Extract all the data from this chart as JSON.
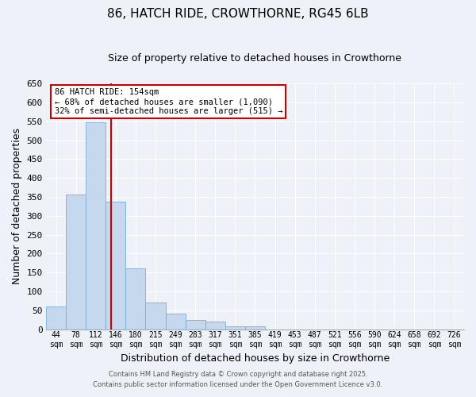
{
  "title": "86, HATCH RIDE, CROWTHORNE, RG45 6LB",
  "subtitle": "Size of property relative to detached houses in Crowthorne",
  "xlabel": "Distribution of detached houses by size in Crowthorne",
  "ylabel": "Number of detached properties",
  "bar_color": "#c5d8ee",
  "bar_edge_color": "#7aadd4",
  "background_color": "#eef2f8",
  "grid_color": "#ffffff",
  "bin_labels": [
    "44sqm",
    "78sqm",
    "112sqm",
    "146sqm",
    "180sqm",
    "215sqm",
    "249sqm",
    "283sqm",
    "317sqm",
    "351sqm",
    "385sqm",
    "419sqm",
    "453sqm",
    "487sqm",
    "521sqm",
    "556sqm",
    "590sqm",
    "624sqm",
    "658sqm",
    "692sqm",
    "726sqm"
  ],
  "bar_values": [
    60,
    357,
    547,
    338,
    160,
    70,
    42,
    25,
    20,
    7,
    7,
    0,
    0,
    0,
    0,
    0,
    0,
    0,
    0,
    0,
    0
  ],
  "ylim": [
    0,
    650
  ],
  "yticks": [
    0,
    50,
    100,
    150,
    200,
    250,
    300,
    350,
    400,
    450,
    500,
    550,
    600,
    650
  ],
  "property_line_x": 3.25,
  "property_line_color": "#cc0000",
  "annotation_title": "86 HATCH RIDE: 154sqm",
  "annotation_line1": "← 68% of detached houses are smaller (1,090)",
  "annotation_line2": "32% of semi-detached houses are larger (515) →",
  "annotation_box_color": "#cc0000",
  "footer1": "Contains HM Land Registry data © Crown copyright and database right 2025.",
  "footer2": "Contains public sector information licensed under the Open Government Licence v3.0."
}
